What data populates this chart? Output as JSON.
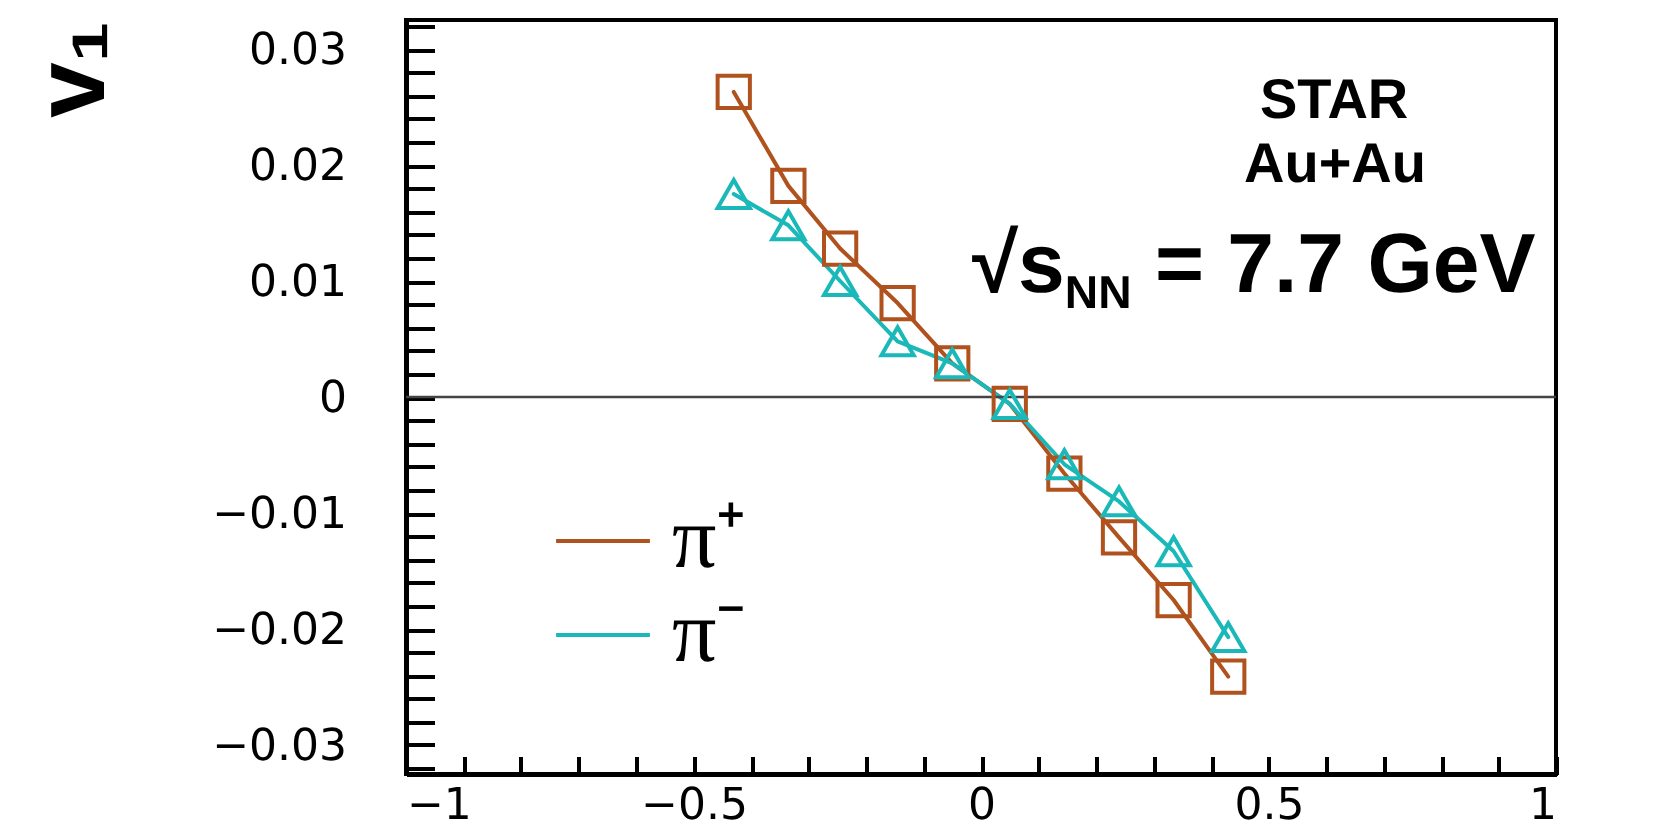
{
  "chart_data": {
    "type": "line",
    "ylabel": "v₁",
    "annotations": [
      "STAR",
      "Au+Au",
      "√s$_{NN}$ = 7.7 GeV"
    ],
    "x": [
      -0.43,
      -0.335,
      -0.245,
      -0.145,
      -0.05,
      0.05,
      0.145,
      0.24,
      0.335,
      0.43
    ],
    "series": [
      {
        "name": "π⁺",
        "color": "#b0521e",
        "marker": "square",
        "values": [
          0.0263,
          0.0182,
          0.0128,
          0.0081,
          0.0029,
          -0.0006,
          -0.0066,
          -0.0121,
          -0.0175,
          -0.0241
        ]
      },
      {
        "name": "π⁻",
        "color": "#1ab8b8",
        "marker": "triangle",
        "values": [
          0.0175,
          0.0148,
          0.01,
          0.0048,
          0.0029,
          -0.0006,
          -0.0058,
          -0.009,
          -0.0133,
          -0.0207
        ]
      }
    ],
    "xlim": [
      -1,
      1
    ],
    "ylim": [
      -0.0325,
      0.0325
    ],
    "xticks": [
      -1,
      {
        "value": -0.9,
        "label": null
      },
      {
        "value": -0.8,
        "label": null
      },
      {
        "value": -0.7,
        "label": null
      },
      {
        "value": -0.6,
        "label": null
      },
      -0.5,
      {
        "value": -0.4,
        "label": null
      },
      {
        "value": -0.3,
        "label": null
      },
      {
        "value": -0.2,
        "label": null
      },
      {
        "value": -0.1,
        "label": null
      },
      0,
      {
        "value": 0.1,
        "label": null
      },
      {
        "value": 0.2,
        "label": null
      },
      {
        "value": 0.3,
        "label": null
      },
      {
        "value": 0.4,
        "label": null
      },
      0.5,
      {
        "value": 0.6,
        "label": null
      },
      {
        "value": 0.7,
        "label": null
      },
      {
        "value": 0.8,
        "label": null
      },
      {
        "value": 0.9,
        "label": null
      },
      1
    ],
    "yticks": [
      {
        "value": -0.032,
        "label": null
      },
      -0.03,
      {
        "value": -0.028,
        "label": null
      },
      {
        "value": -0.026,
        "label": null
      },
      {
        "value": -0.024,
        "label": null
      },
      {
        "value": -0.022,
        "label": null
      },
      -0.02,
      {
        "value": -0.018,
        "label": null
      },
      {
        "value": -0.016,
        "label": null
      },
      {
        "value": -0.014,
        "label": null
      },
      {
        "value": -0.012,
        "label": null
      },
      -0.01,
      {
        "value": -0.008,
        "label": null
      },
      {
        "value": -0.006,
        "label": null
      },
      {
        "value": -0.004,
        "label": null
      },
      {
        "value": -0.002,
        "label": null
      },
      0,
      {
        "value": 0.002,
        "label": null
      },
      {
        "value": 0.004,
        "label": null
      },
      {
        "value": 0.006,
        "label": null
      },
      {
        "value": 0.008,
        "label": null
      },
      0.01,
      {
        "value": 0.012,
        "label": null
      },
      {
        "value": 0.014,
        "label": null
      },
      {
        "value": 0.016,
        "label": null
      },
      {
        "value": 0.018,
        "label": null
      },
      0.02,
      {
        "value": 0.022,
        "label": null
      },
      {
        "value": 0.024,
        "label": null
      },
      {
        "value": 0.026,
        "label": null
      },
      {
        "value": 0.028,
        "label": null
      },
      0.03,
      {
        "value": 0.032,
        "label": null
      }
    ],
    "ref_lines": [
      {
        "axis": "y",
        "value": 0,
        "color": "#444444"
      }
    ],
    "legend": "bottom left"
  }
}
